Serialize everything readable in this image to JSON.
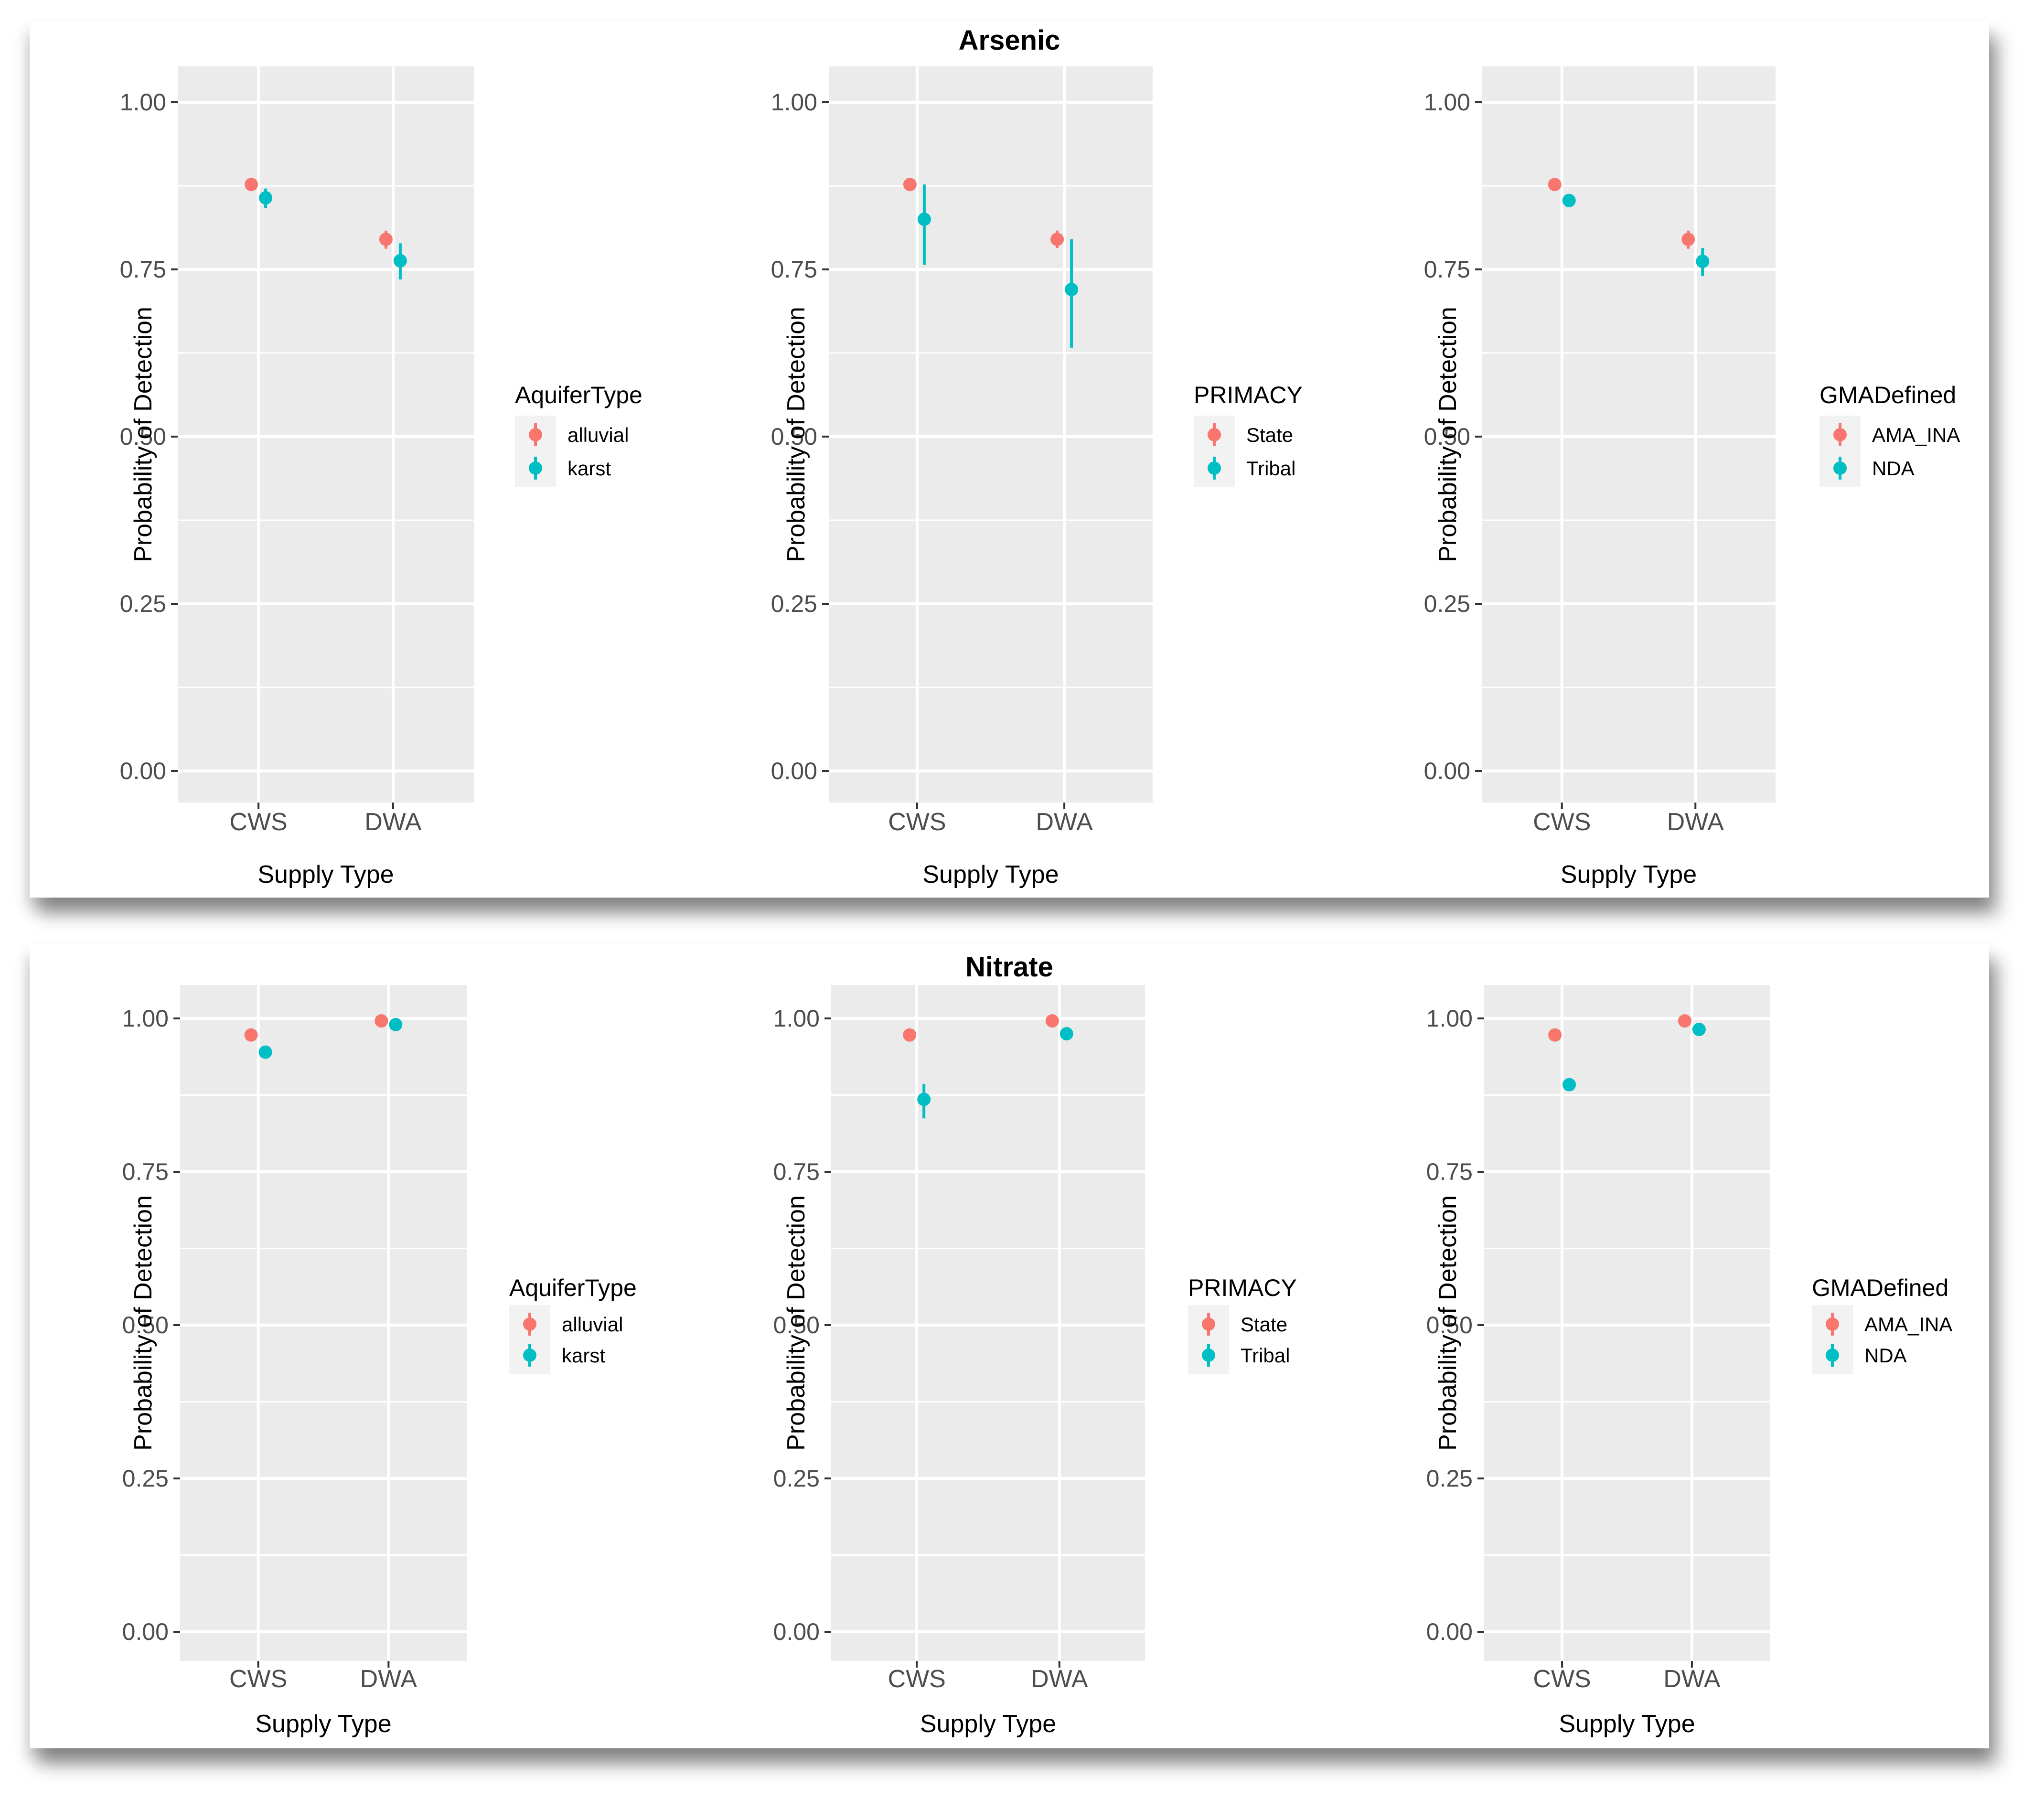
{
  "chart_data": [
    {
      "type": "scatter",
      "title": "Arsenic",
      "facets": [
        {
          "xlabel": "Supply Type",
          "ylabel": "Probability of Detection",
          "categories": [
            "CWS",
            "DWA"
          ],
          "ylim": [
            0,
            1
          ],
          "yticks": [
            "0.00",
            "0.25",
            "0.50",
            "0.75",
            "1.00"
          ],
          "legend_title": "AquiferType",
          "series": [
            {
              "name": "alluvial",
              "color": "#F8766D",
              "values": [
                0.877,
                0.795
              ],
              "lower": [
                0.871,
                0.781
              ],
              "upper": [
                0.883,
                0.808
              ]
            },
            {
              "name": "karst",
              "color": "#00BFC4",
              "values": [
                0.857,
                0.763
              ],
              "lower": [
                0.842,
                0.735
              ],
              "upper": [
                0.871,
                0.789
              ]
            }
          ]
        },
        {
          "xlabel": "Supply Type",
          "ylabel": "Probability of Detection",
          "categories": [
            "CWS",
            "DWA"
          ],
          "ylim": [
            0,
            1
          ],
          "yticks": [
            "0.00",
            "0.25",
            "0.50",
            "0.75",
            "1.00"
          ],
          "legend_title": "PRIMACY",
          "series": [
            {
              "name": "State",
              "color": "#F8766D",
              "values": [
                0.877,
                0.795
              ],
              "lower": [
                0.871,
                0.782
              ],
              "upper": [
                0.883,
                0.808
              ]
            },
            {
              "name": "Tribal",
              "color": "#00BFC4",
              "values": [
                0.825,
                0.72
              ],
              "lower": [
                0.757,
                0.633
              ],
              "upper": [
                0.877,
                0.795
              ]
            }
          ]
        },
        {
          "xlabel": "Supply Type",
          "ylabel": "Probability of Detection",
          "categories": [
            "CWS",
            "DWA"
          ],
          "ylim": [
            0,
            1
          ],
          "yticks": [
            "0.00",
            "0.25",
            "0.50",
            "0.75",
            "1.00"
          ],
          "legend_title": "GMADefined",
          "series": [
            {
              "name": "AMA_INA",
              "color": "#F8766D",
              "values": [
                0.877,
                0.795
              ],
              "lower": [
                0.871,
                0.781
              ],
              "upper": [
                0.883,
                0.808
              ]
            },
            {
              "name": "NDA",
              "color": "#00BFC4",
              "values": [
                0.853,
                0.762
              ],
              "lower": [
                0.843,
                0.74
              ],
              "upper": [
                0.863,
                0.782
              ]
            }
          ]
        }
      ]
    },
    {
      "type": "scatter",
      "title": "Nitrate",
      "facets": [
        {
          "xlabel": "Supply Type",
          "ylabel": "Probability of Detection",
          "categories": [
            "CWS",
            "DWA"
          ],
          "ylim": [
            0,
            1
          ],
          "yticks": [
            "0.00",
            "0.25",
            "0.50",
            "0.75",
            "1.00"
          ],
          "legend_title": "AquiferType",
          "series": [
            {
              "name": "alluvial",
              "color": "#F8766D",
              "values": [
                0.973,
                0.996
              ],
              "lower": [
                0.969,
                0.994
              ],
              "upper": [
                0.977,
                0.998
              ]
            },
            {
              "name": "karst",
              "color": "#00BFC4",
              "values": [
                0.945,
                0.99
              ],
              "lower": [
                0.938,
                0.986
              ],
              "upper": [
                0.952,
                0.994
              ]
            }
          ]
        },
        {
          "xlabel": "Supply Type",
          "ylabel": "Probability of Detection",
          "categories": [
            "CWS",
            "DWA"
          ],
          "ylim": [
            0,
            1
          ],
          "yticks": [
            "0.00",
            "0.25",
            "0.50",
            "0.75",
            "1.00"
          ],
          "legend_title": "PRIMACY",
          "series": [
            {
              "name": "State",
              "color": "#F8766D",
              "values": [
                0.973,
                0.996
              ],
              "lower": [
                0.969,
                0.994
              ],
              "upper": [
                0.977,
                0.998
              ]
            },
            {
              "name": "Tribal",
              "color": "#00BFC4",
              "values": [
                0.868,
                0.975
              ],
              "lower": [
                0.837,
                0.965
              ],
              "upper": [
                0.893,
                0.983
              ]
            }
          ]
        },
        {
          "xlabel": "Supply Type",
          "ylabel": "Probability of Detection",
          "categories": [
            "CWS",
            "DWA"
          ],
          "ylim": [
            0,
            1
          ],
          "yticks": [
            "0.00",
            "0.25",
            "0.50",
            "0.75",
            "1.00"
          ],
          "legend_title": "GMADefined",
          "series": [
            {
              "name": "AMA_INA",
              "color": "#F8766D",
              "values": [
                0.973,
                0.996
              ],
              "lower": [
                0.969,
                0.994
              ],
              "upper": [
                0.977,
                0.998
              ]
            },
            {
              "name": "NDA",
              "color": "#00BFC4",
              "values": [
                0.892,
                0.982
              ],
              "lower": [
                0.884,
                0.976
              ],
              "upper": [
                0.9,
                0.987
              ]
            }
          ]
        }
      ]
    }
  ]
}
